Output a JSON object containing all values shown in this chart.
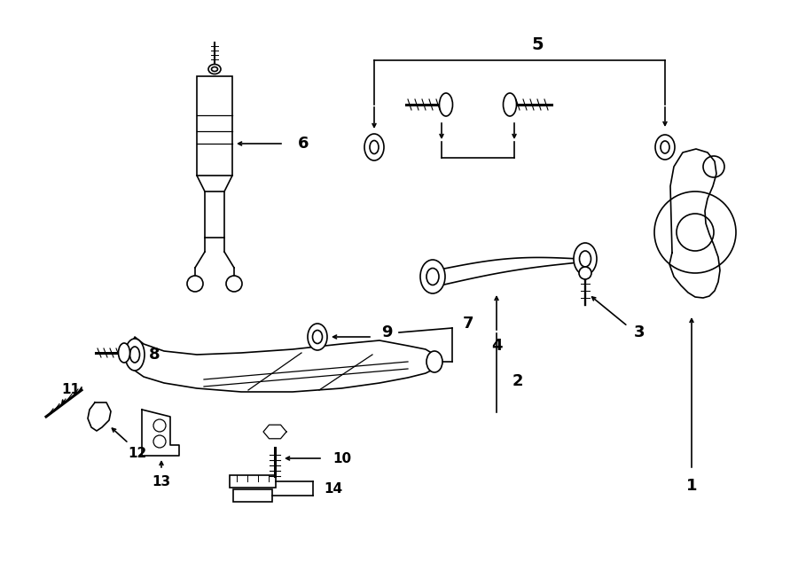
{
  "bg_color": "#ffffff",
  "lc": "#000000",
  "lw": 1.2,
  "fig_w": 9.0,
  "fig_h": 6.61,
  "dpi": 100
}
